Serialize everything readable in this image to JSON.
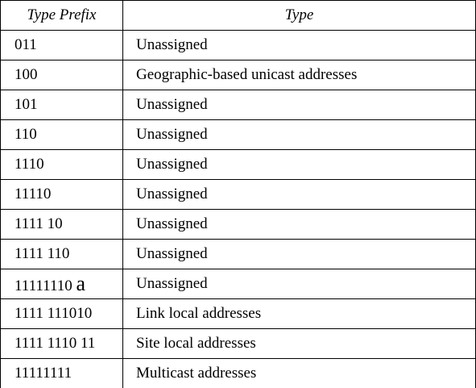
{
  "table": {
    "headers": {
      "prefix": "Type Prefix",
      "type": "Type"
    },
    "rows": [
      {
        "prefix": "011",
        "prefix_suffix": "",
        "type": "Unassigned"
      },
      {
        "prefix": "100",
        "prefix_suffix": "",
        "type": "Geographic-based unicast addresses"
      },
      {
        "prefix": "101",
        "prefix_suffix": "",
        "type": "Unassigned"
      },
      {
        "prefix": "110",
        "prefix_suffix": "",
        "type": "Unassigned"
      },
      {
        "prefix": "1110",
        "prefix_suffix": "",
        "type": "Unassigned"
      },
      {
        "prefix": "11110",
        "prefix_suffix": "",
        "type": "Unassigned"
      },
      {
        "prefix": "1111 10",
        "prefix_suffix": "",
        "type": "Unassigned"
      },
      {
        "prefix": "1111 110",
        "prefix_suffix": "",
        "type": "Unassigned"
      },
      {
        "prefix": "11111110 ",
        "prefix_suffix": "a",
        "type": "Unassigned"
      },
      {
        "prefix": "1111 111010",
        "prefix_suffix": "",
        "type": "Link local addresses"
      },
      {
        "prefix": "1111 1110 11",
        "prefix_suffix": "",
        "type": "Site local addresses"
      },
      {
        "prefix": "11111111",
        "prefix_suffix": "",
        "type": "Multicast addresses"
      }
    ]
  }
}
